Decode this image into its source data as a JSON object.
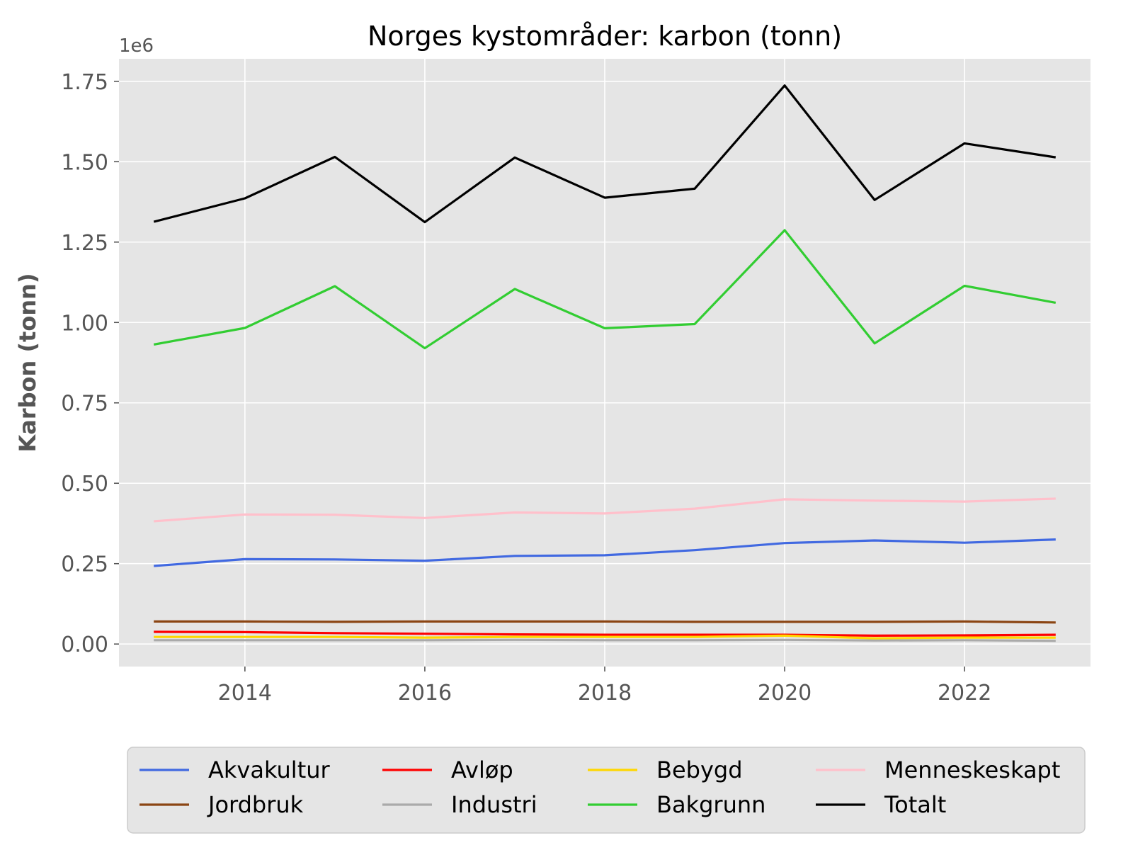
{
  "chart_data": {
    "type": "line",
    "title": "Norges kystområder: karbon (tonn)",
    "xlabel": "",
    "ylabel": "Karbon (tonn)",
    "y_offset_label": "1e6",
    "xlim": [
      2012.6,
      2023.4
    ],
    "ylim": [
      -0.07,
      1.82
    ],
    "x_ticks": [
      2014,
      2016,
      2018,
      2020,
      2022
    ],
    "x_tick_labels": [
      "2014",
      "2016",
      "2018",
      "2020",
      "2022"
    ],
    "y_ticks": [
      0.0,
      0.25,
      0.5,
      0.75,
      1.0,
      1.25,
      1.5,
      1.75
    ],
    "y_tick_labels": [
      "0.00",
      "0.25",
      "0.50",
      "0.75",
      "1.00",
      "1.25",
      "1.50",
      "1.75"
    ],
    "grid": true,
    "legend_position": "bottom-center",
    "legend_columns": 4,
    "x": [
      2013,
      2014,
      2015,
      2016,
      2017,
      2018,
      2019,
      2020,
      2021,
      2022,
      2023
    ],
    "series": [
      {
        "name": "Akvakultur",
        "color": "#4169e1",
        "values": [
          0.243,
          0.264,
          0.263,
          0.259,
          0.274,
          0.276,
          0.292,
          0.314,
          0.322,
          0.315,
          0.325
        ]
      },
      {
        "name": "Jordbruk",
        "color": "#8b4513",
        "values": [
          0.07,
          0.07,
          0.069,
          0.07,
          0.07,
          0.07,
          0.069,
          0.069,
          0.069,
          0.07,
          0.067
        ]
      },
      {
        "name": "Avløp",
        "color": "#ff0000",
        "values": [
          0.038,
          0.037,
          0.034,
          0.032,
          0.03,
          0.029,
          0.029,
          0.029,
          0.026,
          0.027,
          0.029
        ]
      },
      {
        "name": "Industri",
        "color": "#aaaaaa",
        "values": [
          0.012,
          0.012,
          0.012,
          0.012,
          0.013,
          0.012,
          0.012,
          0.013,
          0.011,
          0.012,
          0.01
        ]
      },
      {
        "name": "Bebygd",
        "color": "#ffd700",
        "values": [
          0.022,
          0.022,
          0.022,
          0.02,
          0.022,
          0.022,
          0.022,
          0.026,
          0.018,
          0.02,
          0.02
        ]
      },
      {
        "name": "Bakgrunn",
        "color": "#32cd32",
        "values": [
          0.932,
          0.983,
          1.113,
          0.92,
          1.104,
          0.982,
          0.995,
          1.287,
          0.935,
          1.114,
          1.062
        ]
      },
      {
        "name": "Menneskeskapt",
        "color": "#ffc0cb",
        "values": [
          0.382,
          0.403,
          0.402,
          0.392,
          0.409,
          0.406,
          0.421,
          0.45,
          0.446,
          0.443,
          0.452
        ]
      },
      {
        "name": "Totalt",
        "color": "#000000",
        "values": [
          1.314,
          1.386,
          1.515,
          1.312,
          1.513,
          1.388,
          1.416,
          1.737,
          1.381,
          1.557,
          1.514
        ]
      }
    ]
  }
}
